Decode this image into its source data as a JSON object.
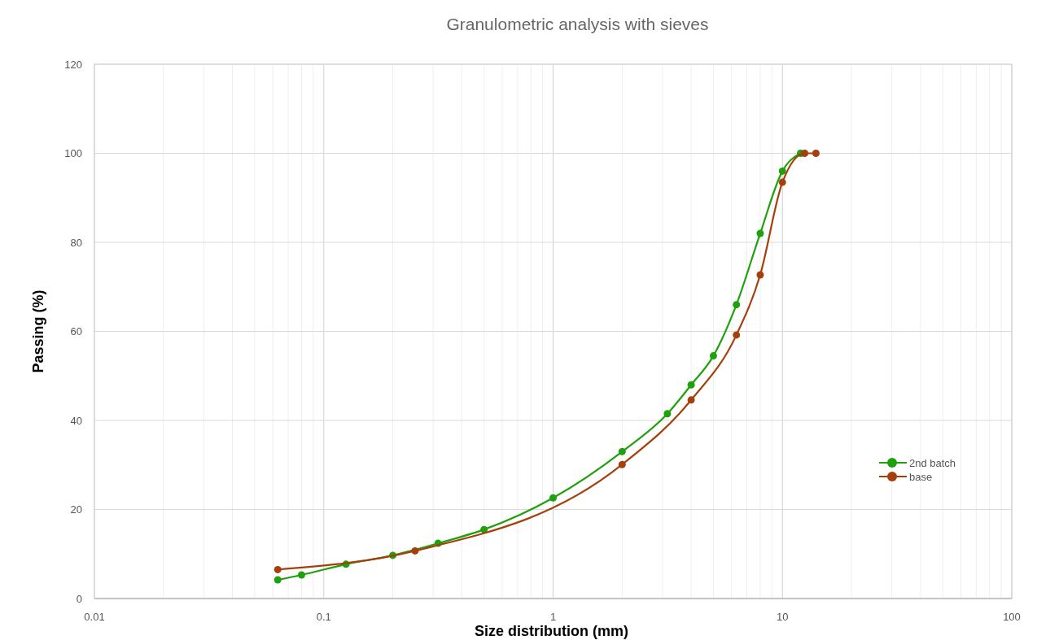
{
  "chart_data": {
    "type": "line",
    "title": "Granulometric analysis with sieves",
    "xlabel": "Size distribution (mm)",
    "ylabel": "Passing (%)",
    "log": "x",
    "grid": true,
    "legend": "right",
    "marker": "circle",
    "line_style": "solid",
    "xlim": [
      0.01,
      100
    ],
    "ylim": [
      0,
      120
    ],
    "xticks": [
      0.01,
      {
        "value": 0.02,
        "label": null
      },
      {
        "value": 0.03,
        "label": null
      },
      {
        "value": 0.04,
        "label": null
      },
      {
        "value": 0.05,
        "label": null
      },
      {
        "value": 0.06,
        "label": null
      },
      {
        "value": 0.07,
        "label": null
      },
      {
        "value": 0.08,
        "label": null
      },
      {
        "value": 0.09,
        "label": null
      },
      0.1,
      {
        "value": 0.2,
        "label": null
      },
      {
        "value": 0.3,
        "label": null
      },
      {
        "value": 0.4,
        "label": null
      },
      {
        "value": 0.5,
        "label": null
      },
      {
        "value": 0.6,
        "label": null
      },
      {
        "value": 0.7,
        "label": null
      },
      {
        "value": 0.8,
        "label": null
      },
      {
        "value": 0.9,
        "label": null
      },
      1,
      {
        "value": 2,
        "label": null
      },
      {
        "value": 3,
        "label": null
      },
      {
        "value": 4,
        "label": null
      },
      {
        "value": 5,
        "label": null
      },
      {
        "value": 6,
        "label": null
      },
      {
        "value": 7,
        "label": null
      },
      {
        "value": 8,
        "label": null
      },
      {
        "value": 9,
        "label": null
      },
      10,
      {
        "value": 20,
        "label": null
      },
      {
        "value": 30,
        "label": null
      },
      {
        "value": 40,
        "label": null
      },
      {
        "value": 50,
        "label": null
      },
      {
        "value": 60,
        "label": null
      },
      {
        "value": 70,
        "label": null
      },
      {
        "value": 80,
        "label": null
      },
      {
        "value": 90,
        "label": null
      },
      100
    ],
    "yticks": [
      0,
      20,
      40,
      60,
      80,
      100,
      120
    ],
    "series": [
      {
        "name": "2nd batch",
        "color": "#1ea10c",
        "x": [
          0.063,
          0.08,
          0.125,
          0.2,
          0.315,
          0.5,
          1,
          2,
          3.15,
          4,
          5,
          6.3,
          8,
          10,
          12
        ],
        "values": [
          4.2,
          5.3,
          7.7,
          9.7,
          12.4,
          15.5,
          22.6,
          33,
          41.5,
          48,
          54.5,
          66,
          82,
          96,
          100
        ]
      },
      {
        "name": "base",
        "color": "#a53f0b",
        "x": [
          0.063,
          0.25,
          2,
          4,
          6.3,
          8,
          10,
          12.5,
          14
        ],
        "values": [
          6.5,
          10.7,
          30.1,
          44.6,
          59.2,
          72.7,
          93.5,
          100,
          100
        ]
      }
    ]
  }
}
